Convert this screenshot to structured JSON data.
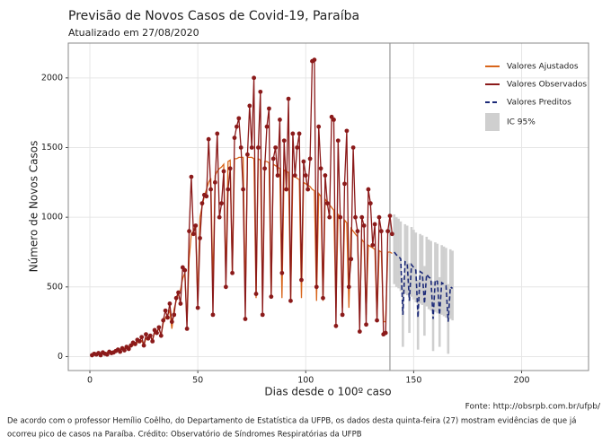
{
  "chart_data": {
    "type": "line",
    "title": "Previsão de Novos Casos de Covid-19, Paraíba",
    "subtitle": "Atualizado em 27/08/2020",
    "xlabel": "Dias desde o 100º caso",
    "ylabel": "Número de Novos Casos",
    "xlim": [
      -10,
      231
    ],
    "xticks": [
      0,
      50,
      100,
      150,
      200
    ],
    "ylim": [
      -100,
      2250
    ],
    "yticks": [
      0,
      500,
      1000,
      1500,
      2000
    ],
    "grid": true,
    "legend": "top-right",
    "vline": 139,
    "x": [
      1,
      2,
      3,
      4,
      5,
      6,
      7,
      8,
      9,
      10,
      11,
      12,
      13,
      14,
      15,
      16,
      17,
      18,
      19,
      20,
      21,
      22,
      23,
      24,
      25,
      26,
      27,
      28,
      29,
      30,
      31,
      32,
      33,
      34,
      35,
      36,
      37,
      38,
      39,
      40,
      41,
      42,
      43,
      44,
      45,
      46,
      47,
      48,
      49,
      50,
      51,
      52,
      53,
      54,
      55,
      56,
      57,
      58,
      59,
      60,
      61,
      62,
      63,
      64,
      65,
      66,
      67,
      68,
      69,
      70,
      71,
      72,
      73,
      74,
      75,
      76,
      77,
      78,
      79,
      80,
      81,
      82,
      83,
      84,
      85,
      86,
      87,
      88,
      89,
      90,
      91,
      92,
      93,
      94,
      95,
      96,
      97,
      98,
      99,
      100,
      101,
      102,
      103,
      104,
      105,
      106,
      107,
      108,
      109,
      110,
      111,
      112,
      113,
      114,
      115,
      116,
      117,
      118,
      119,
      120,
      121,
      122,
      123,
      124,
      125,
      126,
      127,
      128,
      129,
      130,
      131,
      132,
      133,
      134,
      135,
      136,
      137,
      138,
      139,
      140
    ],
    "series": [
      {
        "name": "Valores Ajustados",
        "color": "#d8651b",
        "values": [
          15,
          18,
          20,
          22,
          24,
          26,
          28,
          30,
          33,
          36,
          40,
          44,
          48,
          52,
          56,
          60,
          65,
          70,
          75,
          80,
          90,
          100,
          105,
          115,
          80,
          130,
          140,
          150,
          120,
          170,
          180,
          200,
          150,
          240,
          280,
          300,
          330,
          200,
          340,
          400,
          450,
          480,
          560,
          600,
          250,
          700,
          880,
          900,
          950,
          400,
          1000,
          1080,
          1150,
          1200,
          1250,
          1280,
          500,
          1300,
          1330,
          1350,
          1360,
          1380,
          550,
          1400,
          1410,
          600,
          1420,
          1420,
          1430,
          1430,
          1430,
          400,
          1430,
          1430,
          1430,
          1420,
          420,
          1420,
          1410,
          400,
          1400,
          1400,
          1390,
          420,
          1380,
          1370,
          1360,
          1350,
          420,
          1340,
          1330,
          1320,
          400,
          1300,
          1290,
          1280,
          1270,
          420,
          1250,
          1240,
          1230,
          1220,
          1200,
          1190,
          400,
          1170,
          1150,
          400,
          1130,
          1110,
          1090,
          1070,
          1050,
          350,
          1020,
          1000,
          350,
          980,
          960,
          350,
          920,
          900,
          880,
          860,
          300,
          840,
          820,
          300,
          800,
          790,
          780,
          770,
          280,
          760,
          750,
          250,
          250,
          750,
          750,
          740
        ]
      },
      {
        "name": "Valores Observados",
        "color": "#8b1a1a",
        "markers": true,
        "values": [
          10,
          20,
          15,
          25,
          10,
          30,
          20,
          15,
          35,
          25,
          30,
          40,
          50,
          35,
          60,
          45,
          70,
          55,
          80,
          100,
          90,
          120,
          110,
          140,
          80,
          160,
          130,
          150,
          110,
          190,
          170,
          210,
          150,
          260,
          330,
          280,
          380,
          250,
          300,
          420,
          460,
          380,
          640,
          620,
          200,
          900,
          1290,
          880,
          940,
          350,
          850,
          1100,
          1160,
          1150,
          1560,
          1200,
          300,
          1250,
          1600,
          1000,
          1100,
          1330,
          500,
          1200,
          1350,
          600,
          1570,
          1650,
          1710,
          1500,
          1200,
          270,
          1450,
          1800,
          1500,
          2000,
          450,
          1500,
          1900,
          300,
          1350,
          1650,
          1780,
          430,
          1420,
          1500,
          1300,
          1700,
          600,
          1550,
          1200,
          1850,
          400,
          1600,
          1300,
          1500,
          1600,
          550,
          1400,
          1300,
          1200,
          1420,
          2120,
          2130,
          500,
          1650,
          1350,
          420,
          1300,
          1100,
          1000,
          1720,
          1700,
          220,
          1550,
          1000,
          300,
          1240,
          1620,
          500,
          700,
          1500,
          1000,
          900,
          180,
          1000,
          940,
          230,
          1200,
          1100,
          800,
          950,
          260,
          1000,
          900,
          160,
          170,
          900,
          1010,
          880
        ]
      },
      {
        "name": "Valores Preditos",
        "color": "#1c2a78",
        "dashed": true,
        "x": [
          141,
          142,
          143,
          144,
          145,
          146,
          147,
          148,
          149,
          150,
          151,
          152,
          153,
          154,
          155,
          156,
          157,
          158,
          159,
          160,
          161,
          162,
          163,
          164,
          165,
          166,
          167,
          168
        ],
        "values": [
          750,
          730,
          720,
          700,
          300,
          680,
          670,
          400,
          660,
          640,
          620,
          280,
          610,
          600,
          380,
          590,
          570,
          560,
          270,
          550,
          540,
          300,
          530,
          520,
          510,
          250,
          500,
          490
        ],
        "lower": [
          520,
          500,
          490,
          470,
          70,
          450,
          440,
          170,
          430,
          410,
          390,
          50,
          380,
          370,
          150,
          360,
          340,
          330,
          40,
          320,
          310,
          70,
          300,
          290,
          280,
          20,
          270,
          260
        ],
        "upper": [
          1020,
          1000,
          990,
          970,
          570,
          950,
          940,
          670,
          930,
          910,
          890,
          550,
          880,
          870,
          650,
          860,
          840,
          830,
          540,
          820,
          810,
          570,
          800,
          790,
          780,
          520,
          770,
          760
        ]
      }
    ],
    "ci_label": "IC 95%",
    "ci_color": "#cfcfcf",
    "source": "Fonte: http://obsrpb.com.br/ufpb/"
  },
  "caption": [
    "De acordo com o professor Hemílio Coêlho, do Departamento de Estatística da UFPB, os dados desta quinta-feira (27) mostram evidências de que já",
    "ocorreu pico de casos na Paraíba. Crédito: Observatório de Síndromes Respiratórias da UFPB"
  ]
}
